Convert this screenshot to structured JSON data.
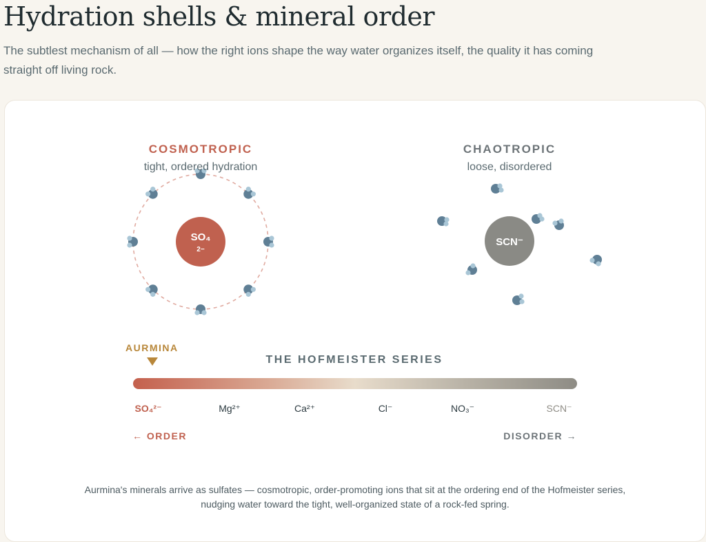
{
  "page": {
    "title": "Hydration shells & mineral order",
    "subtitle": "The subtlest mechanism of all — how the right ions shape the way water organizes itself, the quality it has coming straight off living rock."
  },
  "cosmotropic": {
    "label": "COSMOTROPIC",
    "sub": "tight, ordered hydration",
    "ion": "SO₄",
    "ion_charge": "2−",
    "color": "#c0614f"
  },
  "chaotropic": {
    "label": "CHAOTROPIC",
    "sub": "loose, disordered",
    "ion": "SCN⁻",
    "color": "#8a8a85"
  },
  "hofmeister": {
    "title": "THE HOFMEISTER SERIES",
    "marker_label": "AURMINA",
    "ions": [
      "SO₄²⁻",
      "Mg²⁺",
      "Ca²⁺",
      "Cl⁻",
      "NO₃⁻",
      "SCN⁻"
    ],
    "order_label": "← ORDER",
    "disorder_label": "DISORDER →"
  },
  "footer": "Aurmina's minerals arrive as sulfates — cosmotropic, order-promoting ions that sit at the ordering end of the Hofmeister series, nudging water toward the tight, well-organized state of a rock-fed spring.",
  "colors": {
    "order": "#c0614f",
    "disorder": "#6d7478",
    "accent": "#b8873a",
    "water_oxygen": "#5f7f95",
    "water_hydrogen": "#a9c6d6"
  }
}
